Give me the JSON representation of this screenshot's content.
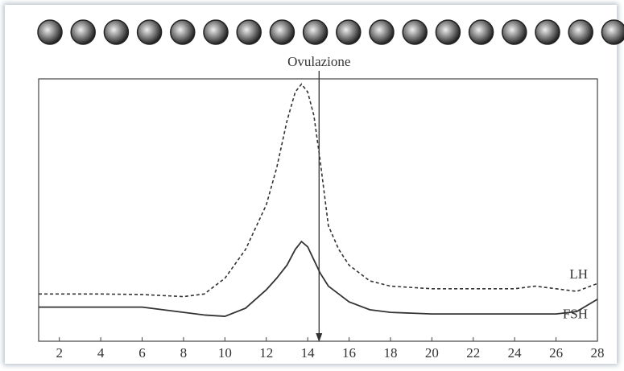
{
  "chart_data": {
    "type": "line",
    "annotation": {
      "text": "Ovulazione",
      "x": 14.55
    },
    "x": [
      1,
      4,
      6,
      8,
      9,
      10,
      11,
      12,
      12.5,
      13,
      13.4,
      13.7,
      14,
      14.3,
      14.6,
      15,
      15.5,
      16,
      17,
      18,
      20,
      22,
      24,
      25,
      26,
      27,
      28
    ],
    "series": [
      {
        "name": "LH",
        "color": "#333333",
        "dash": true,
        "values": [
          18,
          18,
          17.8,
          17,
          18,
          24,
          35,
          52,
          66,
          84,
          95,
          98,
          95,
          86,
          69,
          44,
          35,
          29,
          23,
          21,
          20,
          20,
          20,
          21,
          20,
          19,
          22
        ]
      },
      {
        "name": "FSH",
        "color": "#333333",
        "dash": false,
        "values": [
          13,
          13,
          13,
          11,
          10,
          9.5,
          12.6,
          19.6,
          24,
          29,
          35,
          38,
          36,
          31,
          26,
          21,
          18,
          15,
          12,
          11,
          10.4,
          10.4,
          10.4,
          10.4,
          10.4,
          11.3,
          16
        ]
      }
    ],
    "xlim": [
      1,
      28
    ],
    "ylim": [
      0,
      100
    ],
    "xticks": [
      2,
      4,
      6,
      8,
      10,
      12,
      14,
      16,
      18,
      20,
      22,
      24,
      26,
      28
    ]
  }
}
